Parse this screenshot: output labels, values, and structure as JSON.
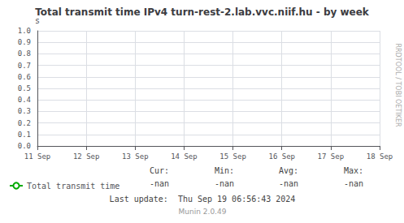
{
  "chart_data": {
    "type": "line",
    "title": "Total transmit time IPv4 turn-rest-2.lab.vvc.niif.hu - by week",
    "y_label": "s",
    "categories": [
      "11 Sep",
      "12 Sep",
      "13 Sep",
      "14 Sep",
      "15 Sep",
      "16 Sep",
      "17 Sep",
      "18 Sep"
    ],
    "series": [
      {
        "name": "Total transmit time",
        "color": "#00aa00",
        "values": [
          null,
          null,
          null,
          null,
          null,
          null,
          null,
          null
        ]
      }
    ],
    "ylim": [
      0.0,
      1.0
    ],
    "yticks": [
      {
        "value": 0,
        "label": "0.0"
      },
      0.1,
      0.2,
      0.3,
      0.4,
      0.5,
      0.6,
      0.7,
      0.8,
      0.9,
      {
        "value": 1,
        "label": "1.0"
      }
    ],
    "grid": true,
    "legend": "bottom",
    "annotations": [
      "Cur:",
      "Min:",
      "Avg:",
      "Max:",
      "-nan",
      "-nan",
      "-nan",
      "-nan",
      "Last update:  Thu Sep 19 06:56:43 2024",
      "Munin 2.0.49",
      "RRDTOOL / TOBI OETIKER"
    ]
  }
}
